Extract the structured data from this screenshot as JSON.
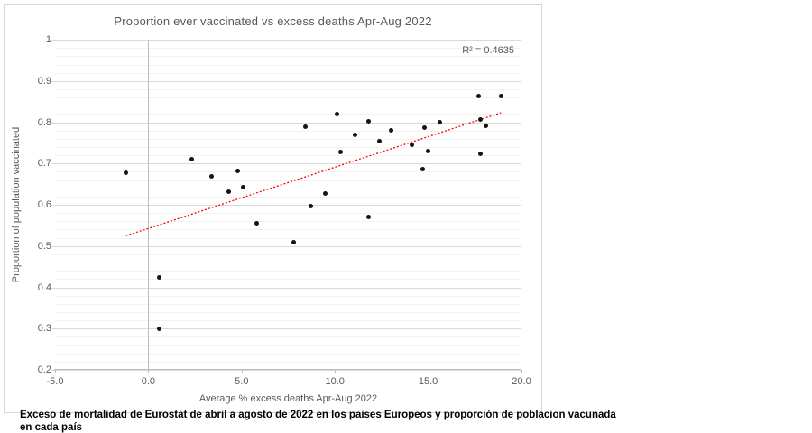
{
  "page": {
    "caption_line1": "Exceso de mortalidad de Eurostat de abril a agosto de 2022 en los paises Europeos y proporción de poblacion vacunada",
    "caption_line2": "en cada país"
  },
  "chart_data": {
    "type": "scatter",
    "title": "Proportion ever vaccinated vs excess deaths Apr-Aug 2022",
    "xlabel": "Average  % excess deaths Apr-Aug 2022",
    "ylabel": "Proportion of population vaccinated",
    "annotation": "R² = 0.4635",
    "xlim": [
      -5.0,
      20.0
    ],
    "ylim": [
      0.2,
      1.0
    ],
    "x_ticks": [
      {
        "value": -5.0,
        "label": "-5.0"
      },
      {
        "value": 0.0,
        "label": "0.0"
      },
      {
        "value": 5.0,
        "label": "5.0"
      },
      {
        "value": 10.0,
        "label": "10.0"
      },
      {
        "value": 15.0,
        "label": "15.0"
      },
      {
        "value": 20.0,
        "label": "20.0"
      }
    ],
    "y_ticks": [
      {
        "value": 1.0,
        "label": "1"
      },
      {
        "value": 0.9,
        "label": "0.9"
      },
      {
        "value": 0.8,
        "label": "0.8"
      },
      {
        "value": 0.7,
        "label": "0.7"
      },
      {
        "value": 0.6,
        "label": "0.6"
      },
      {
        "value": 0.5,
        "label": "0.5"
      },
      {
        "value": 0.4,
        "label": "0.4"
      },
      {
        "value": 0.3,
        "label": "0.3"
      },
      {
        "value": 0.2,
        "label": "0.2"
      }
    ],
    "grid": {
      "major_step": 0.1,
      "minor_step": 0.02,
      "vertical_line_at_x": 0
    },
    "points": [
      [
        -1.2,
        0.677
      ],
      [
        0.6,
        0.425
      ],
      [
        0.6,
        0.3
      ],
      [
        2.3,
        0.71
      ],
      [
        3.4,
        0.67
      ],
      [
        4.3,
        0.631
      ],
      [
        4.8,
        0.681
      ],
      [
        5.1,
        0.643
      ],
      [
        5.8,
        0.556
      ],
      [
        7.8,
        0.51
      ],
      [
        8.4,
        0.79
      ],
      [
        8.7,
        0.597
      ],
      [
        9.5,
        0.628
      ],
      [
        10.1,
        0.82
      ],
      [
        10.3,
        0.728
      ],
      [
        11.1,
        0.77
      ],
      [
        11.8,
        0.802
      ],
      [
        11.8,
        0.57
      ],
      [
        12.4,
        0.754
      ],
      [
        13.0,
        0.78
      ],
      [
        14.1,
        0.745
      ],
      [
        14.7,
        0.686
      ],
      [
        14.8,
        0.788
      ],
      [
        15.0,
        0.73
      ],
      [
        15.6,
        0.8
      ],
      [
        17.7,
        0.863
      ],
      [
        17.8,
        0.806
      ],
      [
        17.8,
        0.723
      ],
      [
        18.1,
        0.792
      ],
      [
        18.9,
        0.863
      ]
    ],
    "trendline": {
      "style": "dotted",
      "color": "#ff0000",
      "x1": -1.2,
      "y1": 0.525,
      "x2": 18.9,
      "y2": 0.823
    },
    "colors": {
      "point": "#141414",
      "major_grid": "#d9d9d9",
      "minor_grid": "#f2f2f2",
      "axis": "#bfbfbf",
      "text": "#595959"
    }
  }
}
